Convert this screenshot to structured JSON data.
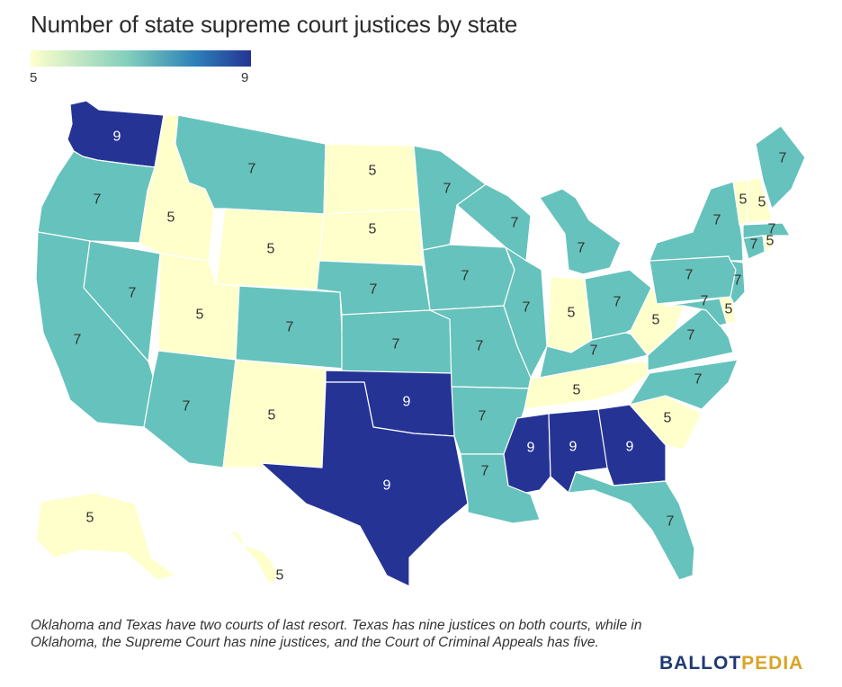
{
  "title": "Number of state supreme court justices by state",
  "legend": {
    "min_label": "5",
    "max_label": "9",
    "colors": [
      "#ffffcc",
      "#6cc3bb",
      "#2a7fb8",
      "#253494"
    ]
  },
  "colors": {
    "5": "#ffffcc",
    "7": "#66c2bc",
    "9": "#253494"
  },
  "states": [
    {
      "code": "WA",
      "value": 9
    },
    {
      "code": "OR",
      "value": 7
    },
    {
      "code": "CA",
      "value": 7
    },
    {
      "code": "NV",
      "value": 7
    },
    {
      "code": "ID",
      "value": 5
    },
    {
      "code": "MT",
      "value": 7
    },
    {
      "code": "WY",
      "value": 5
    },
    {
      "code": "UT",
      "value": 5
    },
    {
      "code": "AZ",
      "value": 7
    },
    {
      "code": "CO",
      "value": 7
    },
    {
      "code": "NM",
      "value": 5
    },
    {
      "code": "ND",
      "value": 5
    },
    {
      "code": "SD",
      "value": 5
    },
    {
      "code": "NE",
      "value": 7
    },
    {
      "code": "KS",
      "value": 7
    },
    {
      "code": "OK",
      "value": 9
    },
    {
      "code": "TX",
      "value": 9
    },
    {
      "code": "MN",
      "value": 7
    },
    {
      "code": "IA",
      "value": 7
    },
    {
      "code": "MO",
      "value": 7
    },
    {
      "code": "AR",
      "value": 7
    },
    {
      "code": "LA",
      "value": 7
    },
    {
      "code": "WI",
      "value": 7
    },
    {
      "code": "IL",
      "value": 7
    },
    {
      "code": "MI",
      "value": 7
    },
    {
      "code": "IN",
      "value": 5
    },
    {
      "code": "OH",
      "value": 7
    },
    {
      "code": "KY",
      "value": 7
    },
    {
      "code": "TN",
      "value": 5
    },
    {
      "code": "MS",
      "value": 9
    },
    {
      "code": "AL",
      "value": 9
    },
    {
      "code": "GA",
      "value": 9
    },
    {
      "code": "FL",
      "value": 7
    },
    {
      "code": "SC",
      "value": 5
    },
    {
      "code": "NC",
      "value": 7
    },
    {
      "code": "VA",
      "value": 7
    },
    {
      "code": "WV",
      "value": 5
    },
    {
      "code": "MD",
      "value": 7
    },
    {
      "code": "DE",
      "value": 5
    },
    {
      "code": "PA",
      "value": 7
    },
    {
      "code": "NJ",
      "value": 7
    },
    {
      "code": "NY",
      "value": 7
    },
    {
      "code": "CT",
      "value": 7
    },
    {
      "code": "RI",
      "value": 5
    },
    {
      "code": "MA",
      "value": 7
    },
    {
      "code": "VT",
      "value": 5
    },
    {
      "code": "NH",
      "value": 5
    },
    {
      "code": "ME",
      "value": 7
    },
    {
      "code": "AK",
      "value": 5
    },
    {
      "code": "HI",
      "value": 5
    }
  ],
  "note": "Oklahoma and Texas have two courts of last resort. Texas has nine justices on both courts, while in Oklahoma, the Supreme Court has nine justices, and the Court of Criminal Appeals has five.",
  "brand": {
    "part1": "BALLOT",
    "part2": "PEDIA"
  }
}
